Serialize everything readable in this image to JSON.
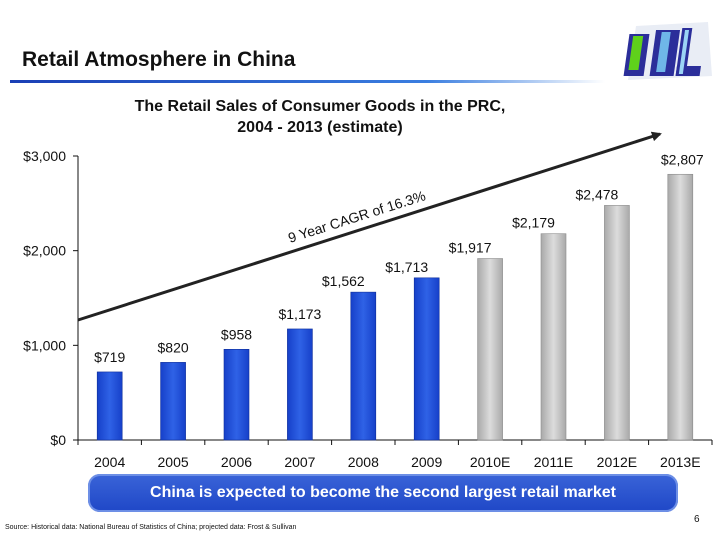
{
  "slide": {
    "title": "Retail Atmosphere in China",
    "banner": "China is expected to become the second largest retail market",
    "source": "Source: Historical data: National Bureau of Statistics of China; projected data: Frost & Sullivan",
    "page_number": "6"
  },
  "colors": {
    "historical_bar": "#1f4fd6",
    "projected_bar": "#c8c8c8",
    "banner": "#2a55d0",
    "title_rule": "#1a3fb5"
  },
  "chart_data": {
    "type": "bar",
    "title": "The Retail Sales of Consumer Goods in the PRC, 2004 - 2013 (estimate)",
    "title_lines": [
      "The Retail Sales of Consumer Goods in the PRC,",
      "2004 - 2013 (estimate)"
    ],
    "categories": [
      "2004",
      "2005",
      "2006",
      "2007",
      "2008",
      "2009",
      "2010E",
      "2011E",
      "2012E",
      "2013E"
    ],
    "values": [
      719,
      820,
      958,
      1173,
      1562,
      1713,
      1917,
      2179,
      2478,
      2807
    ],
    "value_labels": [
      "$719",
      "$820",
      "$958",
      "$1,173",
      "$1,562",
      "$1,713",
      "$1,917",
      "$2,179",
      "$2,478",
      "$2,807"
    ],
    "projected": [
      false,
      false,
      false,
      false,
      false,
      false,
      true,
      true,
      true,
      true
    ],
    "ylim": [
      0,
      3000
    ],
    "yticks": [
      0,
      1000,
      2000,
      3000
    ],
    "ytick_labels": [
      "$0",
      "$1,000",
      "$2,000",
      "$3,000"
    ],
    "annotation": "9 Year CAGR of 16.3%",
    "xlabel": "",
    "ylabel": "",
    "grid": false,
    "legend": "none"
  }
}
